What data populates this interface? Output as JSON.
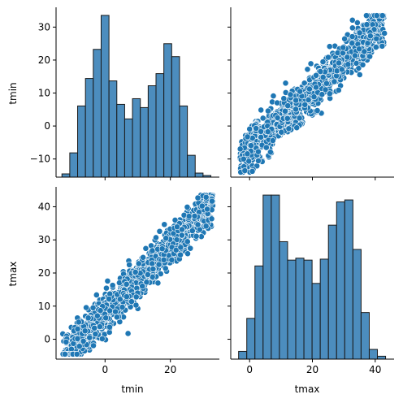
{
  "colors": {
    "marker": "#1f77b4",
    "marker_edge": "#ffffff",
    "bar_fill": "#4c8dbe",
    "bar_edge": "#1a1a1a",
    "axis": "#000000"
  },
  "chart_data": {
    "type": "pairplot",
    "variables": [
      "tmin",
      "tmax"
    ],
    "grid": false,
    "legend": "none",
    "panels": [
      {
        "id": "tmin_hist",
        "type": "bar",
        "row": 0,
        "col": 0,
        "variable": "tmin",
        "xlim": [
          -15,
          35
        ],
        "bin_edges": [
          -13.2,
          -10.8,
          -8.4,
          -6.0,
          -3.6,
          -1.2,
          1.2,
          3.6,
          6.0,
          8.4,
          10.8,
          13.2,
          15.6,
          18.0,
          20.4,
          22.8,
          25.2,
          27.6,
          30.0,
          32.4
        ],
        "counts": [
          4,
          30,
          88,
          122,
          158,
          200,
          119,
          90,
          72,
          97,
          86,
          113,
          128,
          165,
          149,
          88,
          27,
          5,
          2
        ]
      },
      {
        "id": "tmin_vs_tmax",
        "type": "scatter",
        "row": 0,
        "col": 1,
        "x_variable": "tmax",
        "y_variable": "tmin",
        "xlim": [
          -6,
          46
        ],
        "ylim": [
          -15.5,
          36
        ],
        "slope": 0.88,
        "intercept": -7.0,
        "x_range": [
          -3,
          43
        ]
      },
      {
        "id": "tmax_vs_tmin",
        "type": "scatter",
        "row": 1,
        "col": 0,
        "x_variable": "tmin",
        "y_variable": "tmax",
        "xlim": [
          -15,
          35
        ],
        "ylim": [
          -6,
          46
        ],
        "slope": 1.0,
        "intercept": 8.0,
        "x_range": [
          -13,
          33
        ]
      },
      {
        "id": "tmax_hist",
        "type": "bar",
        "row": 1,
        "col": 1,
        "variable": "tmax",
        "xlim": [
          -6,
          46
        ],
        "bin_edges": [
          -3.5,
          -0.9,
          1.7,
          4.3,
          6.9,
          9.5,
          12.1,
          14.7,
          17.3,
          19.9,
          22.5,
          25.1,
          27.7,
          30.3,
          32.9,
          35.5,
          38.1,
          40.7,
          43.3
        ],
        "counts": [
          8,
          42,
          96,
          169,
          169,
          121,
          102,
          104,
          102,
          78,
          103,
          138,
          162,
          164,
          113,
          48,
          10,
          3
        ]
      }
    ],
    "axes": {
      "tmin": {
        "label": "tmin",
        "range": [
          -15,
          35
        ],
        "ticks": [
          -10,
          0,
          10,
          20,
          30
        ],
        "x_ticks": [
          0,
          20
        ]
      },
      "tmax": {
        "label": "tmax",
        "range": [
          -6,
          46
        ],
        "ticks": [
          0,
          10,
          20,
          30,
          40
        ],
        "x_ticks": [
          0,
          20,
          40
        ]
      }
    },
    "tick_labels": {
      "row0_y": [
        "30",
        "20",
        "10",
        "0",
        "−10"
      ],
      "row1_y": [
        "40",
        "30",
        "20",
        "10",
        "0"
      ],
      "col0_x": [
        "0",
        "20"
      ],
      "col1_x": [
        "0",
        "20",
        "40"
      ]
    },
    "axis_labels": {
      "row0_y": "tmin",
      "row1_y": "tmax",
      "col0_x": "tmin",
      "col1_x": "tmax"
    }
  }
}
